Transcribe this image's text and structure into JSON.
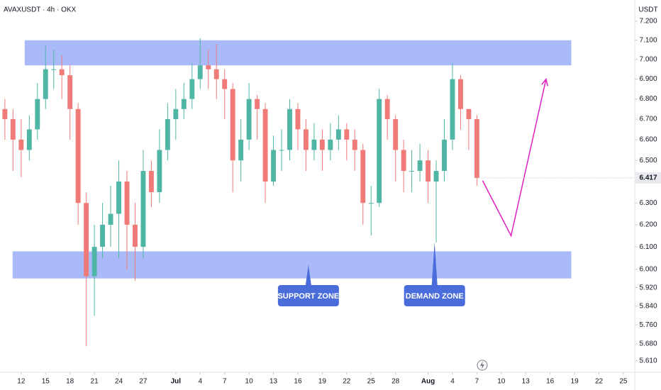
{
  "chart_data": {
    "type": "candlestick",
    "title": "AVAXUSDT · 4h · OKX",
    "currency": "USDT",
    "up_color": "#4fb5a5",
    "down_color": "#f07a78",
    "log_scale": true,
    "grid": false,
    "x": [
      -2,
      -1,
      0,
      1,
      2,
      3,
      4,
      5,
      6,
      7,
      8,
      9,
      10,
      11,
      12,
      13,
      14,
      15,
      16,
      17,
      18,
      19,
      20,
      21,
      22,
      23,
      24,
      25,
      26,
      27,
      28,
      29,
      30,
      31,
      32,
      33,
      34,
      35,
      36,
      37,
      38,
      39,
      40,
      41,
      42,
      43,
      44,
      45,
      46,
      47,
      48,
      49,
      50,
      51,
      52,
      53,
      54,
      55,
      56
    ],
    "open": [
      6.75,
      6.7,
      6.6,
      6.55,
      6.65,
      6.8,
      6.95,
      6.95,
      6.92,
      6.75,
      6.3,
      5.97,
      6.1,
      6.2,
      6.25,
      6.4,
      6.2,
      6.1,
      6.45,
      6.35,
      6.55,
      6.7,
      6.75,
      6.8,
      6.9,
      6.97,
      6.95,
      6.9,
      6.85,
      6.5,
      6.6,
      6.8,
      6.75,
      6.4,
      6.55,
      6.55,
      6.75,
      6.65,
      6.55,
      6.6,
      6.55,
      6.6,
      6.65,
      6.6,
      6.55,
      6.3,
      6.3,
      6.8,
      6.7,
      6.55,
      6.45,
      6.45,
      6.5,
      6.4,
      6.45,
      6.6,
      6.9,
      6.75,
      6.7
    ],
    "high": [
      6.8,
      6.75,
      6.7,
      6.72,
      6.88,
      7.07,
      7.05,
      7.02,
      6.97,
      6.78,
      6.35,
      6.2,
      6.3,
      6.38,
      6.5,
      6.45,
      6.3,
      6.55,
      6.5,
      6.65,
      6.78,
      6.85,
      6.88,
      6.98,
      7.11,
      7.05,
      7.08,
      6.95,
      6.88,
      6.7,
      6.88,
      6.82,
      6.78,
      6.62,
      6.65,
      6.8,
      6.78,
      6.7,
      6.68,
      6.65,
      6.68,
      6.72,
      6.68,
      6.65,
      6.58,
      6.38,
      6.85,
      6.82,
      6.72,
      6.6,
      6.55,
      6.58,
      6.55,
      6.5,
      6.7,
      6.98,
      6.92,
      6.75,
      6.72
    ],
    "low": [
      6.6,
      6.45,
      6.42,
      6.5,
      6.6,
      6.75,
      6.85,
      6.8,
      6.6,
      6.2,
      5.67,
      5.8,
      6.05,
      6.1,
      6.05,
      6.0,
      5.95,
      6.05,
      6.28,
      6.3,
      6.5,
      6.6,
      6.7,
      6.75,
      6.85,
      6.85,
      6.8,
      6.7,
      6.35,
      6.4,
      6.55,
      6.6,
      6.3,
      6.38,
      6.45,
      6.5,
      6.55,
      6.45,
      6.5,
      6.45,
      6.5,
      6.55,
      6.5,
      6.45,
      6.2,
      6.15,
      6.28,
      6.6,
      6.4,
      6.35,
      6.35,
      6.4,
      6.3,
      6.12,
      6.4,
      6.55,
      6.65,
      6.55,
      6.38
    ],
    "close": [
      6.7,
      6.6,
      6.55,
      6.65,
      6.8,
      6.95,
      6.95,
      6.92,
      6.75,
      6.3,
      5.97,
      6.1,
      6.2,
      6.25,
      6.4,
      6.2,
      6.1,
      6.45,
      6.35,
      6.55,
      6.7,
      6.75,
      6.8,
      6.9,
      6.97,
      6.95,
      6.9,
      6.85,
      6.5,
      6.6,
      6.8,
      6.75,
      6.4,
      6.55,
      6.55,
      6.75,
      6.65,
      6.55,
      6.6,
      6.55,
      6.6,
      6.65,
      6.6,
      6.55,
      6.3,
      6.3,
      6.8,
      6.7,
      6.55,
      6.45,
      6.45,
      6.5,
      6.4,
      6.45,
      6.6,
      6.9,
      6.75,
      6.7,
      6.417
    ],
    "last_price": {
      "value": 6.417,
      "label": "6.417"
    },
    "xlim": [
      -2.6,
      75.4
    ],
    "ylim": [
      5.563,
      7.313
    ],
    "xticks": [
      {
        "value": 0,
        "label": "12"
      },
      {
        "value": 3,
        "label": "15"
      },
      {
        "value": 6,
        "label": "18"
      },
      {
        "value": 9,
        "label": "21"
      },
      {
        "value": 12,
        "label": "24"
      },
      {
        "value": 15,
        "label": "27"
      },
      {
        "value": 19,
        "label": "Jul"
      },
      {
        "value": 22,
        "label": "4"
      },
      {
        "value": 25,
        "label": "7"
      },
      {
        "value": 28,
        "label": "10"
      },
      {
        "value": 31,
        "label": "13"
      },
      {
        "value": 34,
        "label": "16"
      },
      {
        "value": 37,
        "label": "19"
      },
      {
        "value": 40,
        "label": "22"
      },
      {
        "value": 43,
        "label": "25"
      },
      {
        "value": 46,
        "label": "28"
      },
      {
        "value": 50,
        "label": "Aug"
      },
      {
        "value": 53,
        "label": "4"
      },
      {
        "value": 56,
        "label": "7"
      },
      {
        "value": 59,
        "label": "10"
      },
      {
        "value": 62,
        "label": "13"
      },
      {
        "value": 65,
        "label": "16"
      },
      {
        "value": 68,
        "label": "19"
      },
      {
        "value": 71,
        "label": "22"
      },
      {
        "value": 74,
        "label": "25"
      }
    ],
    "yticks": [
      {
        "value": 7.2,
        "label": "7.200"
      },
      {
        "value": 7.1,
        "label": "7.100"
      },
      {
        "value": 7.0,
        "label": "7.000"
      },
      {
        "value": 6.9,
        "label": "6.900"
      },
      {
        "value": 6.8,
        "label": "6.800"
      },
      {
        "value": 6.7,
        "label": "6.700"
      },
      {
        "value": 6.6,
        "label": "6.600"
      },
      {
        "value": 6.5,
        "label": "6.500"
      },
      {
        "value": 6.4,
        "label": "6.400"
      },
      {
        "value": 6.3,
        "label": "6.300"
      },
      {
        "value": 6.2,
        "label": "6.200"
      },
      {
        "value": 6.1,
        "label": "6.100"
      },
      {
        "value": 6.0,
        "label": "6.000"
      },
      {
        "value": 5.92,
        "label": "5.920"
      },
      {
        "value": 5.84,
        "label": "5.840"
      },
      {
        "value": 5.76,
        "label": "5.760"
      },
      {
        "value": 5.68,
        "label": "5.680"
      },
      {
        "value": 5.61,
        "label": "5.610"
      }
    ],
    "zones": [
      {
        "x": [
          0.44,
          67.6
        ],
        "low": 6.97,
        "high": 7.1,
        "color": "#aab9f7"
      },
      {
        "x": [
          -1.05,
          67.6
        ],
        "low": 5.96,
        "high": 6.08,
        "color": "#aab9f7"
      }
    ],
    "annotations": [
      {
        "text": "SUPPORT ZONE",
        "x": 35.3,
        "y": 6.02
      },
      {
        "text": "DEMAND ZONE",
        "x": 50.8,
        "y": 6.12
      }
    ],
    "projection": {
      "color": "#e020c0",
      "x": [
        56.7,
        60.2,
        64.5
      ],
      "y": [
        6.404,
        6.15,
        6.9
      ]
    }
  }
}
